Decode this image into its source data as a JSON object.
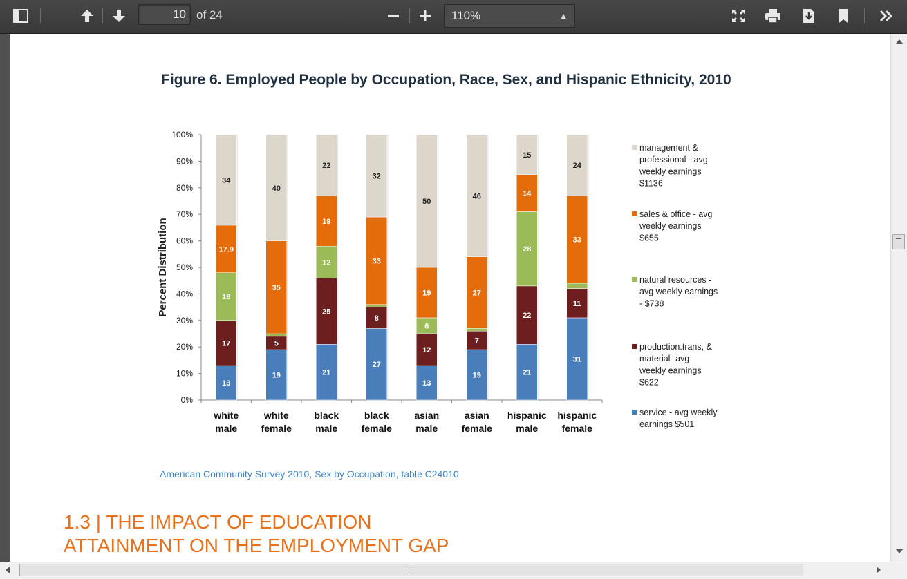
{
  "toolbar": {
    "page_current": "10",
    "page_total_label": "of 24",
    "zoom_value": "110%",
    "icons": [
      "sidebar-toggle-icon",
      "previous-page-icon",
      "next-page-icon",
      "zoom-out-icon",
      "zoom-in-icon",
      "fullscreen-icon",
      "print-icon",
      "download-icon",
      "bookmark-icon",
      "more-tools-icon"
    ]
  },
  "document": {
    "figure_title": "Figure 6. Employed People by Occupation, Race, Sex, and Hispanic Ethnicity, 2010",
    "source_caption": "American Community Survey 2010, Sex by Occupation, table C24010",
    "section_heading_line1": "1.3 | THE IMPACT OF EDUCATION",
    "section_heading_line2": "ATTAINMENT ON THE EMPLOYMENT GAP"
  },
  "chart_data": {
    "type": "bar",
    "stacked": true,
    "title": "Figure 6. Employed People by Occupation, Race, Sex, and Hispanic Ethnicity, 2010",
    "ylabel": "Percent Distribution",
    "xlabel": "",
    "ylim": [
      0,
      100
    ],
    "yticks": [
      "0%",
      "10%",
      "20%",
      "30%",
      "40%",
      "50%",
      "60%",
      "70%",
      "80%",
      "90%",
      "100%"
    ],
    "categories": [
      [
        "white",
        "male"
      ],
      [
        "white",
        "female"
      ],
      [
        "black",
        "male"
      ],
      [
        "black",
        "female"
      ],
      [
        "asian",
        "male"
      ],
      [
        "asian",
        "female"
      ],
      [
        "hispanic",
        "male"
      ],
      [
        "hispanic",
        "female"
      ]
    ],
    "legend_position": "right",
    "series": [
      {
        "name": "service - avg weekly earnings $501",
        "legend_lines": [
          "service - avg weekly",
          "earnings $501"
        ],
        "color": "#4a7ebb",
        "values": [
          13,
          19,
          21,
          27,
          13,
          19,
          21,
          31
        ],
        "labels": [
          "13",
          "19",
          "21",
          "27",
          "13",
          "19",
          "21",
          "31"
        ]
      },
      {
        "name": "production.trans, & material- avg weekly earnings $622",
        "legend_lines": [
          "production.trans, &",
          "material- avg",
          "weekly earnings",
          "$622"
        ],
        "color": "#6d1f1f",
        "values": [
          17,
          5,
          25,
          8,
          12,
          7,
          22,
          11
        ],
        "labels": [
          "17",
          "5",
          "25",
          "8",
          "12",
          "7",
          "22",
          "11"
        ]
      },
      {
        "name": "natural resources - avg weekly earnings - $738",
        "legend_lines": [
          "natural resources -",
          "avg weekly earnings",
          "- $738"
        ],
        "color": "#9bbb59",
        "values": [
          18,
          1,
          12,
          1,
          6,
          1,
          28,
          2
        ],
        "labels": [
          "18",
          "",
          "12",
          "",
          "6",
          "",
          "28",
          ""
        ]
      },
      {
        "name": "sales & office - avg weekly earnings $655",
        "legend_lines": [
          "sales & office - avg",
          "weekly earnings",
          "$655"
        ],
        "color": "#e46c0a",
        "values": [
          17.9,
          35,
          19,
          33,
          19,
          27,
          14,
          33
        ],
        "labels": [
          "17.9",
          "35",
          "19",
          "33",
          "19",
          "27",
          "14",
          "33"
        ]
      },
      {
        "name": "management & professional - avg weekly earnings $1136",
        "legend_lines": [
          "management &",
          "professional - avg",
          "weekly earnings",
          "$1136"
        ],
        "color": "#ddd6cb",
        "values": [
          34,
          40,
          22,
          32,
          50,
          46,
          15,
          24
        ],
        "labels": [
          "34",
          "40",
          "22",
          "32",
          "50",
          "46",
          "15",
          "24"
        ]
      }
    ]
  }
}
